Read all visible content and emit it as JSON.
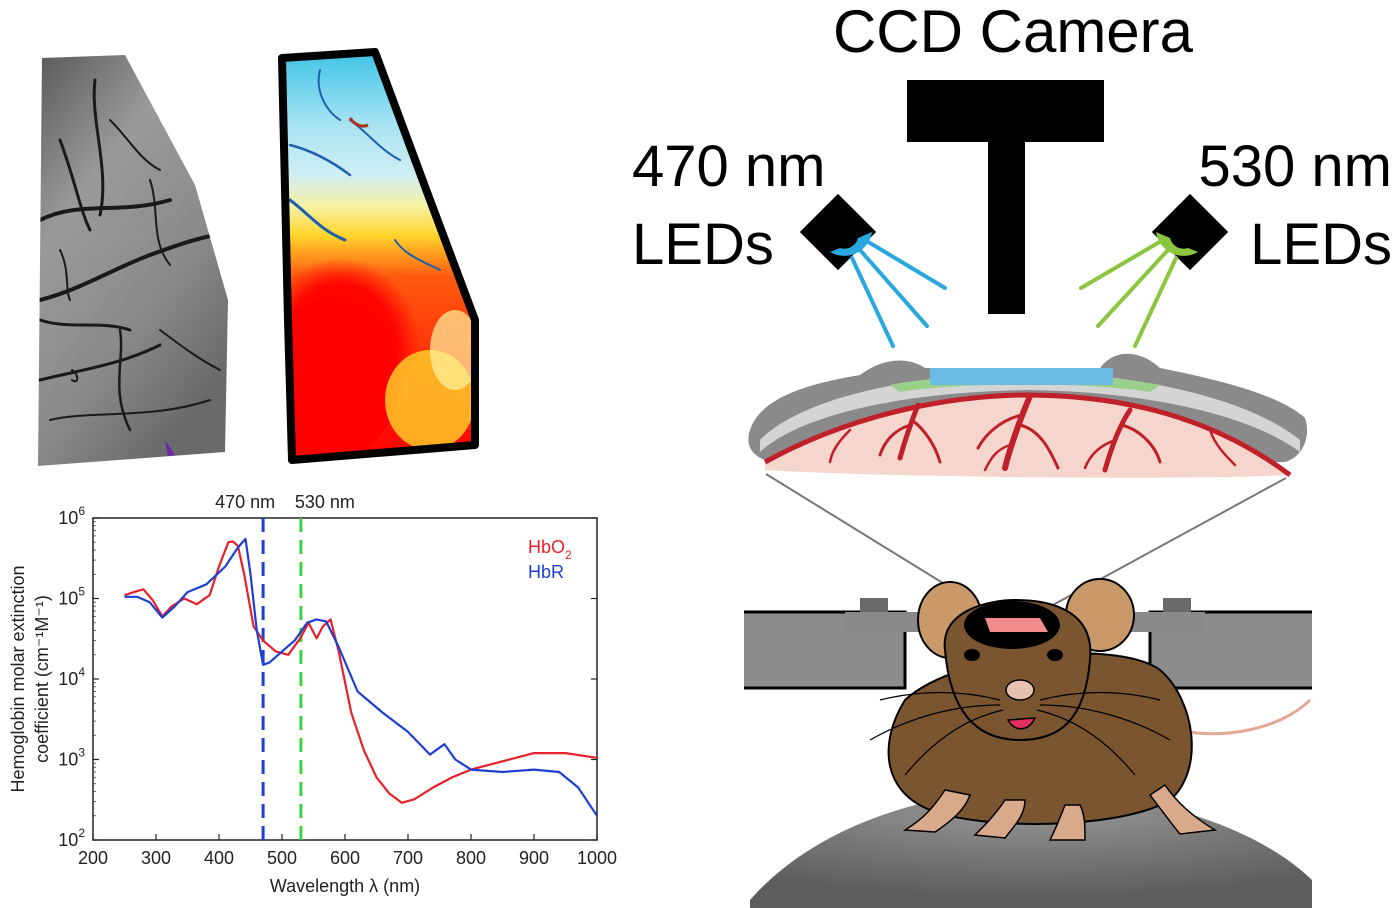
{
  "title_camera": "CCD Camera",
  "led_left": {
    "wavelength": "470 nm",
    "label": "LEDs"
  },
  "led_right": {
    "wavelength": "530 nm",
    "label": "LEDs"
  },
  "colors": {
    "hbo2": "#e8202a",
    "hbr": "#1f3fd1",
    "marker_470": "#1f3fd1",
    "marker_530": "#3ad43a",
    "led_blue": "#29a7df",
    "led_green": "#8cc63f",
    "vessel": "#c0202a"
  },
  "chart_data": {
    "type": "line",
    "xlabel": "Wavelength λ (nm)",
    "ylabel": "Hemoglobin molar extinction",
    "ylabel2": "coefficient (cm⁻¹M⁻¹)",
    "xlim": [
      200,
      1000
    ],
    "ylim": [
      100,
      1000000
    ],
    "yscale": "log",
    "xticks": [
      200,
      300,
      400,
      500,
      600,
      700,
      800,
      900,
      1000
    ],
    "yticks": [
      {
        "value": 100,
        "base": "10",
        "exp": "2"
      },
      {
        "value": 1000,
        "base": "10",
        "exp": "3"
      },
      {
        "value": 10000,
        "base": "10",
        "exp": "4"
      },
      {
        "value": 100000,
        "base": "10",
        "exp": "5"
      },
      {
        "value": 1000000,
        "base": "10",
        "exp": "6"
      }
    ],
    "markers": [
      {
        "x": 470,
        "label": "470 nm"
      },
      {
        "x": 530,
        "label": "530 nm"
      }
    ],
    "legend_position": "top-right",
    "series": [
      {
        "name": "HbO",
        "subscript": "2",
        "x": [
          250,
          265,
          280,
          295,
          310,
          325,
          345,
          365,
          385,
          400,
          415,
          422,
          430,
          440,
          455,
          470,
          490,
          510,
          530,
          542,
          555,
          565,
          577,
          590,
          610,
          630,
          650,
          670,
          690,
          710,
          740,
          770,
          800,
          850,
          900,
          950,
          1000
        ],
        "y": [
          110000,
          120000,
          130000,
          95000,
          60000,
          80000,
          100000,
          85000,
          110000,
          250000,
          500000,
          510000,
          450000,
          200000,
          45000,
          30000,
          22000,
          20000,
          33000,
          50000,
          32000,
          45000,
          55000,
          22000,
          3800,
          1300,
          600,
          380,
          290,
          320,
          450,
          600,
          750,
          950,
          1200,
          1200,
          1050
        ]
      },
      {
        "name": "HbR",
        "x": [
          250,
          270,
          290,
          310,
          330,
          350,
          380,
          410,
          430,
          442,
          450,
          460,
          470,
          480,
          500,
          520,
          540,
          555,
          570,
          590,
          620,
          660,
          700,
          735,
          750,
          758,
          775,
          800,
          850,
          900,
          940,
          970,
          1000
        ],
        "y": [
          105000,
          105000,
          90000,
          58000,
          80000,
          120000,
          150000,
          250000,
          430000,
          550000,
          200000,
          40000,
          15000,
          16000,
          22000,
          30000,
          50000,
          55000,
          52000,
          25000,
          7000,
          3800,
          2200,
          1150,
          1400,
          1550,
          1000,
          750,
          700,
          750,
          700,
          450,
          200
        ]
      }
    ]
  }
}
